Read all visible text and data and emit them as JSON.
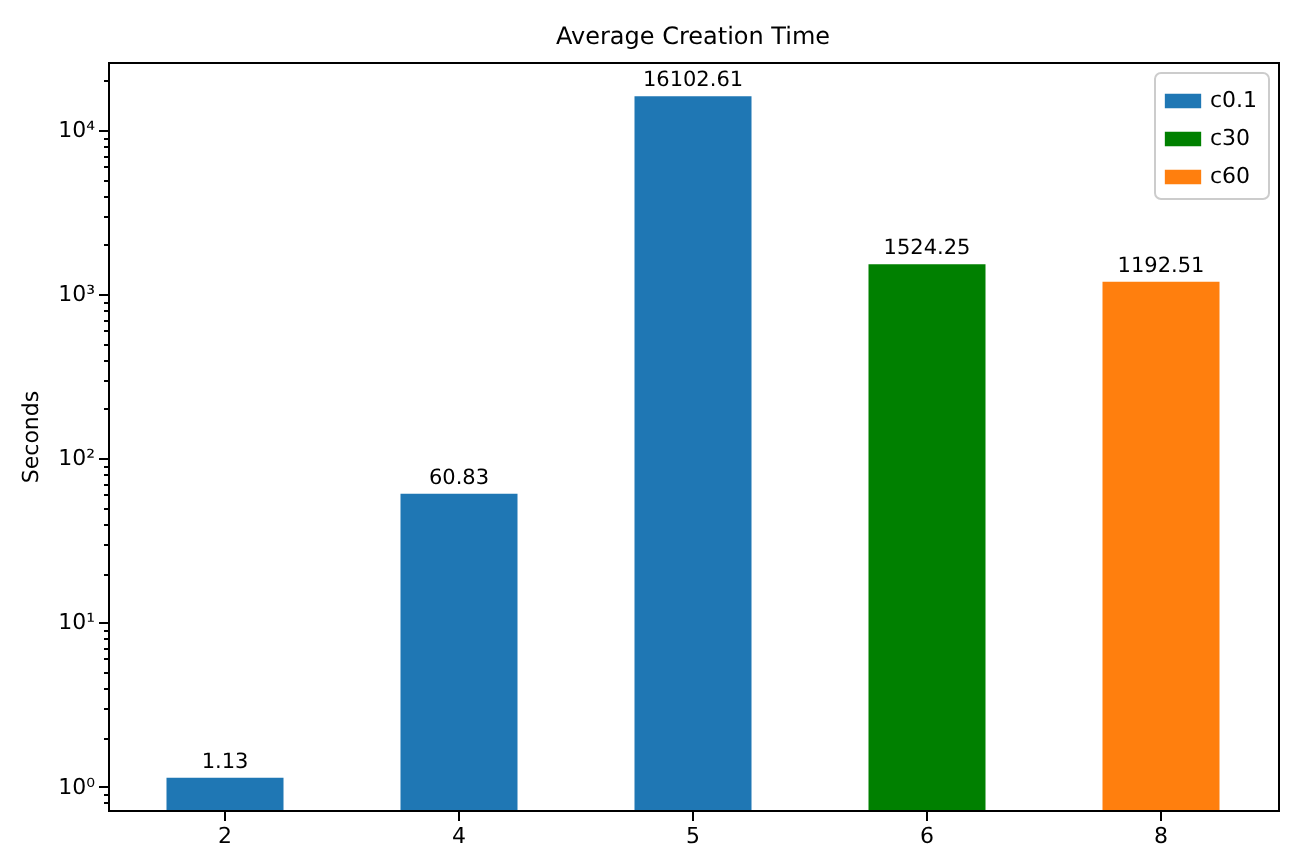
{
  "chart_data": {
    "type": "bar",
    "title": "Average Creation Time",
    "ylabel": "Seconds",
    "categories": [
      "2",
      "4",
      "5",
      "6",
      "8"
    ],
    "series": [
      {
        "name": "c0.1",
        "color": "#1f77b4",
        "values": [
          1.13,
          60.83,
          16102.61,
          null,
          null
        ]
      },
      {
        "name": "c30",
        "color": "#008000",
        "values": [
          null,
          null,
          null,
          1524.25,
          null
        ]
      },
      {
        "name": "c60",
        "color": "#ff7f0e",
        "values": [
          null,
          null,
          null,
          null,
          1192.51
        ]
      }
    ],
    "log": true,
    "ylim": [
      0.72,
      26000
    ],
    "yticks": [
      {
        "value": 0.8,
        "label": null
      },
      {
        "value": 0.9,
        "label": null
      },
      {
        "value": 1,
        "label": "10⁰"
      },
      {
        "value": 2,
        "label": null
      },
      {
        "value": 3,
        "label": null
      },
      {
        "value": 4,
        "label": null
      },
      {
        "value": 5,
        "label": null
      },
      {
        "value": 6,
        "label": null
      },
      {
        "value": 7,
        "label": null
      },
      {
        "value": 8,
        "label": null
      },
      {
        "value": 9,
        "label": null
      },
      {
        "value": 10,
        "label": "10¹"
      },
      {
        "value": 20,
        "label": null
      },
      {
        "value": 30,
        "label": null
      },
      {
        "value": 40,
        "label": null
      },
      {
        "value": 50,
        "label": null
      },
      {
        "value": 60,
        "label": null
      },
      {
        "value": 70,
        "label": null
      },
      {
        "value": 80,
        "label": null
      },
      {
        "value": 90,
        "label": null
      },
      {
        "value": 100,
        "label": "10²"
      },
      {
        "value": 200,
        "label": null
      },
      {
        "value": 300,
        "label": null
      },
      {
        "value": 400,
        "label": null
      },
      {
        "value": 500,
        "label": null
      },
      {
        "value": 600,
        "label": null
      },
      {
        "value": 700,
        "label": null
      },
      {
        "value": 800,
        "label": null
      },
      {
        "value": 900,
        "label": null
      },
      {
        "value": 1000,
        "label": "10³"
      },
      {
        "value": 2000,
        "label": null
      },
      {
        "value": 3000,
        "label": null
      },
      {
        "value": 4000,
        "label": null
      },
      {
        "value": 5000,
        "label": null
      },
      {
        "value": 6000,
        "label": null
      },
      {
        "value": 7000,
        "label": null
      },
      {
        "value": 8000,
        "label": null
      },
      {
        "value": 9000,
        "label": null
      },
      {
        "value": 10000,
        "label": "10⁴"
      },
      {
        "value": 20000,
        "label": null
      }
    ],
    "data_labels": true,
    "legend": "top right"
  }
}
